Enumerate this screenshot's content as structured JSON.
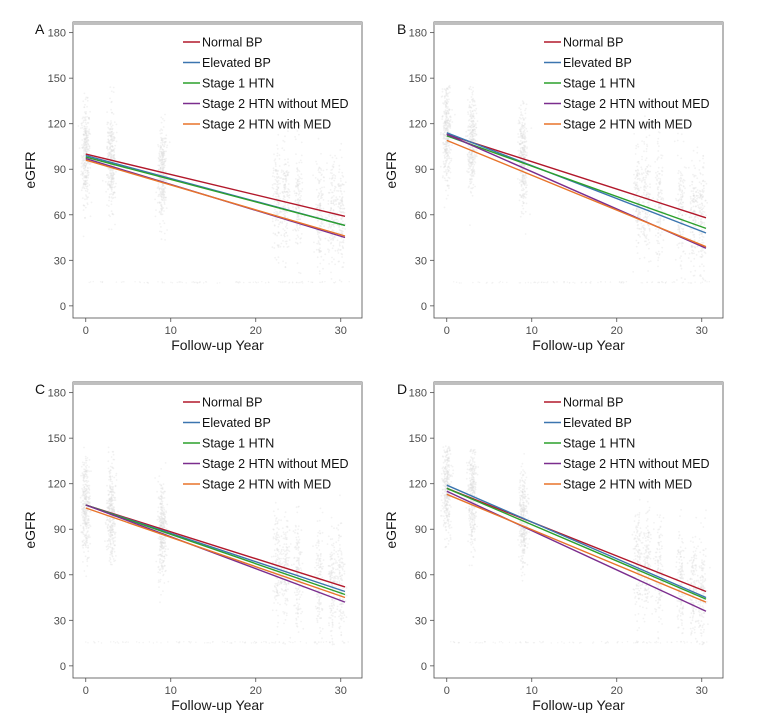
{
  "chart_data": [
    {
      "panel": "A",
      "type": "line",
      "xlabel": "Follow-up Year",
      "ylabel": "eGFR",
      "xlim": [
        -1.5,
        32.5
      ],
      "ylim": [
        -8,
        187
      ],
      "xticks": [
        0,
        10,
        20,
        30
      ],
      "yticks": [
        0,
        30,
        60,
        90,
        120,
        150,
        180
      ],
      "series": [
        {
          "name": "Normal BP",
          "color": "#b2182b",
          "x": [
            0,
            30.5
          ],
          "y": [
            100,
            59
          ]
        },
        {
          "name": "Elevated BP",
          "color": "#3b75af",
          "x": [
            0,
            30.5
          ],
          "y": [
            99,
            53
          ]
        },
        {
          "name": "Stage 1 HTN",
          "color": "#2ca02c",
          "x": [
            0,
            30.5
          ],
          "y": [
            98,
            53
          ]
        },
        {
          "name": "Stage 2 HTN without MED",
          "color": "#7b2d8e",
          "x": [
            0,
            30.5
          ],
          "y": [
            97,
            45
          ]
        },
        {
          "name": "Stage 2 HTN with MED",
          "color": "#e8742a",
          "x": [
            0,
            30.5
          ],
          "y": [
            96,
            46
          ]
        }
      ]
    },
    {
      "panel": "B",
      "type": "line",
      "xlabel": "Follow-up Year",
      "ylabel": "eGFR",
      "xlim": [
        -1.5,
        32.5
      ],
      "ylim": [
        -8,
        187
      ],
      "xticks": [
        0,
        10,
        20,
        30
      ],
      "yticks": [
        0,
        30,
        60,
        90,
        120,
        150,
        180
      ],
      "series": [
        {
          "name": "Normal BP",
          "color": "#b2182b",
          "x": [
            0,
            30.5
          ],
          "y": [
            113,
            58
          ]
        },
        {
          "name": "Elevated BP",
          "color": "#3b75af",
          "x": [
            0,
            30.5
          ],
          "y": [
            114,
            48
          ]
        },
        {
          "name": "Stage 1 HTN",
          "color": "#2ca02c",
          "x": [
            0,
            30.5
          ],
          "y": [
            112,
            51
          ]
        },
        {
          "name": "Stage 2 HTN without MED",
          "color": "#7b2d8e",
          "x": [
            0,
            30.5
          ],
          "y": [
            113,
            38
          ]
        },
        {
          "name": "Stage 2 HTN with MED",
          "color": "#e8742a",
          "x": [
            0,
            30.5
          ],
          "y": [
            109,
            39
          ]
        }
      ]
    },
    {
      "panel": "C",
      "type": "line",
      "xlabel": "Follow-up Year",
      "ylabel": "eGFR",
      "xlim": [
        -1.5,
        32.5
      ],
      "ylim": [
        -8,
        187
      ],
      "xticks": [
        0,
        10,
        20,
        30
      ],
      "yticks": [
        0,
        30,
        60,
        90,
        120,
        150,
        180
      ],
      "series": [
        {
          "name": "Normal BP",
          "color": "#b2182b",
          "x": [
            0,
            30.5
          ],
          "y": [
            106,
            52
          ]
        },
        {
          "name": "Elevated BP",
          "color": "#3b75af",
          "x": [
            0,
            30.5
          ],
          "y": [
            106,
            49
          ]
        },
        {
          "name": "Stage 1 HTN",
          "color": "#2ca02c",
          "x": [
            0,
            30.5
          ],
          "y": [
            106,
            47
          ]
        },
        {
          "name": "Stage 2 HTN without MED",
          "color": "#7b2d8e",
          "x": [
            0,
            30.5
          ],
          "y": [
            106,
            42
          ]
        },
        {
          "name": "Stage 2 HTN with MED",
          "color": "#e8742a",
          "x": [
            0,
            30.5
          ],
          "y": [
            104,
            45
          ]
        }
      ]
    },
    {
      "panel": "D",
      "type": "line",
      "xlabel": "Follow-up Year",
      "ylabel": "eGFR",
      "xlim": [
        -1.5,
        32.5
      ],
      "ylim": [
        -8,
        187
      ],
      "xticks": [
        0,
        10,
        20,
        30
      ],
      "yticks": [
        0,
        30,
        60,
        90,
        120,
        150,
        180
      ],
      "series": [
        {
          "name": "Normal BP",
          "color": "#b2182b",
          "x": [
            0,
            30.5
          ],
          "y": [
            117,
            49
          ]
        },
        {
          "name": "Elevated BP",
          "color": "#3b75af",
          "x": [
            0,
            30.5
          ],
          "y": [
            119,
            45
          ]
        },
        {
          "name": "Stage 1 HTN",
          "color": "#2ca02c",
          "x": [
            0,
            30.5
          ],
          "y": [
            117,
            44
          ]
        },
        {
          "name": "Stage 2 HTN without MED",
          "color": "#7b2d8e",
          "x": [
            0,
            30.5
          ],
          "y": [
            115,
            36
          ]
        },
        {
          "name": "Stage 2 HTN with MED",
          "color": "#e8742a",
          "x": [
            0,
            30.5
          ],
          "y": [
            113,
            42
          ]
        }
      ]
    }
  ],
  "scatter_background": {
    "color": "#bdbdbd",
    "description_columns_years": [
      0,
      3,
      9,
      22.5,
      23.5,
      25,
      27.5,
      29,
      30
    ]
  }
}
